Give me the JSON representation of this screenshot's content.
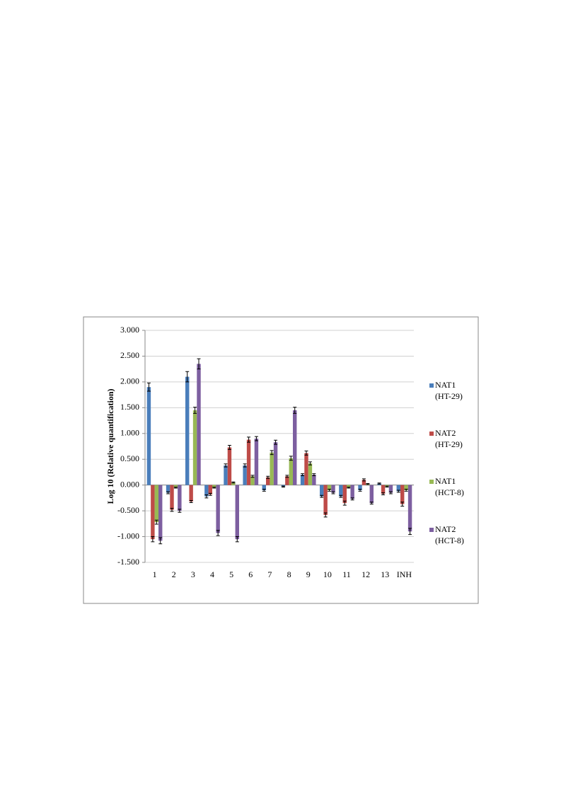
{
  "chart_data": {
    "type": "bar",
    "y_label": "Log 10 (Relative quantification)",
    "categories": [
      "1",
      "2",
      "3",
      "4",
      "5",
      "6",
      "7",
      "8",
      "9",
      "10",
      "11",
      "12",
      "13",
      "INH"
    ],
    "series": [
      {
        "name": "NAT1 (HT-29)",
        "color": "#4a7ebb",
        "values": [
          1.9,
          -0.15,
          2.1,
          -0.22,
          0.38,
          0.38,
          -0.1,
          -0.03,
          0.2,
          -0.22,
          -0.22,
          -0.1,
          0.03,
          -0.12
        ],
        "errors": [
          0.08,
          0.02,
          0.1,
          0.03,
          0.03,
          0.03,
          0.02,
          0.01,
          0.02,
          0.02,
          0.02,
          0.02,
          0.01,
          0.02
        ]
      },
      {
        "name": "NAT2 (HT-29)",
        "color": "#be4b48",
        "values": [
          -1.05,
          -0.48,
          -0.32,
          -0.18,
          0.73,
          0.88,
          0.15,
          0.17,
          0.62,
          -0.58,
          -0.35,
          0.1,
          -0.17,
          -0.37
        ],
        "errors": [
          0.05,
          0.03,
          0.02,
          0.02,
          0.04,
          0.05,
          0.02,
          0.02,
          0.04,
          0.04,
          0.04,
          0.02,
          0.02,
          0.04
        ]
      },
      {
        "name": "NAT1 (HCT-8)",
        "color": "#98b954",
        "values": [
          -0.72,
          -0.05,
          1.45,
          -0.05,
          0.05,
          0.17,
          0.63,
          0.52,
          0.42,
          -0.1,
          -0.05,
          0.02,
          -0.03,
          -0.1
        ],
        "errors": [
          0.04,
          0.01,
          0.06,
          0.01,
          0.01,
          0.02,
          0.04,
          0.04,
          0.03,
          0.02,
          0.01,
          0.01,
          0.01,
          0.02
        ]
      },
      {
        "name": "NAT2 (HCT-8)",
        "color": "#7d5fa0",
        "values": [
          -1.08,
          -0.5,
          2.35,
          -0.93,
          -1.05,
          0.9,
          0.83,
          1.45,
          0.2,
          -0.15,
          -0.27,
          -0.35,
          -0.15,
          -0.9
        ],
        "errors": [
          0.06,
          0.03,
          0.1,
          0.05,
          0.05,
          0.04,
          0.04,
          0.06,
          0.02,
          0.02,
          0.02,
          0.02,
          0.02,
          0.06
        ]
      }
    ],
    "ylim": [
      -1.5,
      3.0
    ],
    "yticks": [
      {
        "value": -1.5,
        "label": "-1.500"
      },
      {
        "value": -1.0,
        "label": "-1.000"
      },
      {
        "value": -0.5,
        "label": "-0.500"
      },
      {
        "value": 0,
        "label": "0.000"
      },
      {
        "value": 0.5,
        "label": "0.500"
      },
      {
        "value": 1.0,
        "label": "1.000"
      },
      {
        "value": 1.5,
        "label": "1.500"
      },
      {
        "value": 2.0,
        "label": "2.000"
      },
      {
        "value": 2.5,
        "label": "2.500"
      },
      {
        "value": 3.0,
        "label": "3.000"
      }
    ],
    "grid": true,
    "legend": "right"
  }
}
